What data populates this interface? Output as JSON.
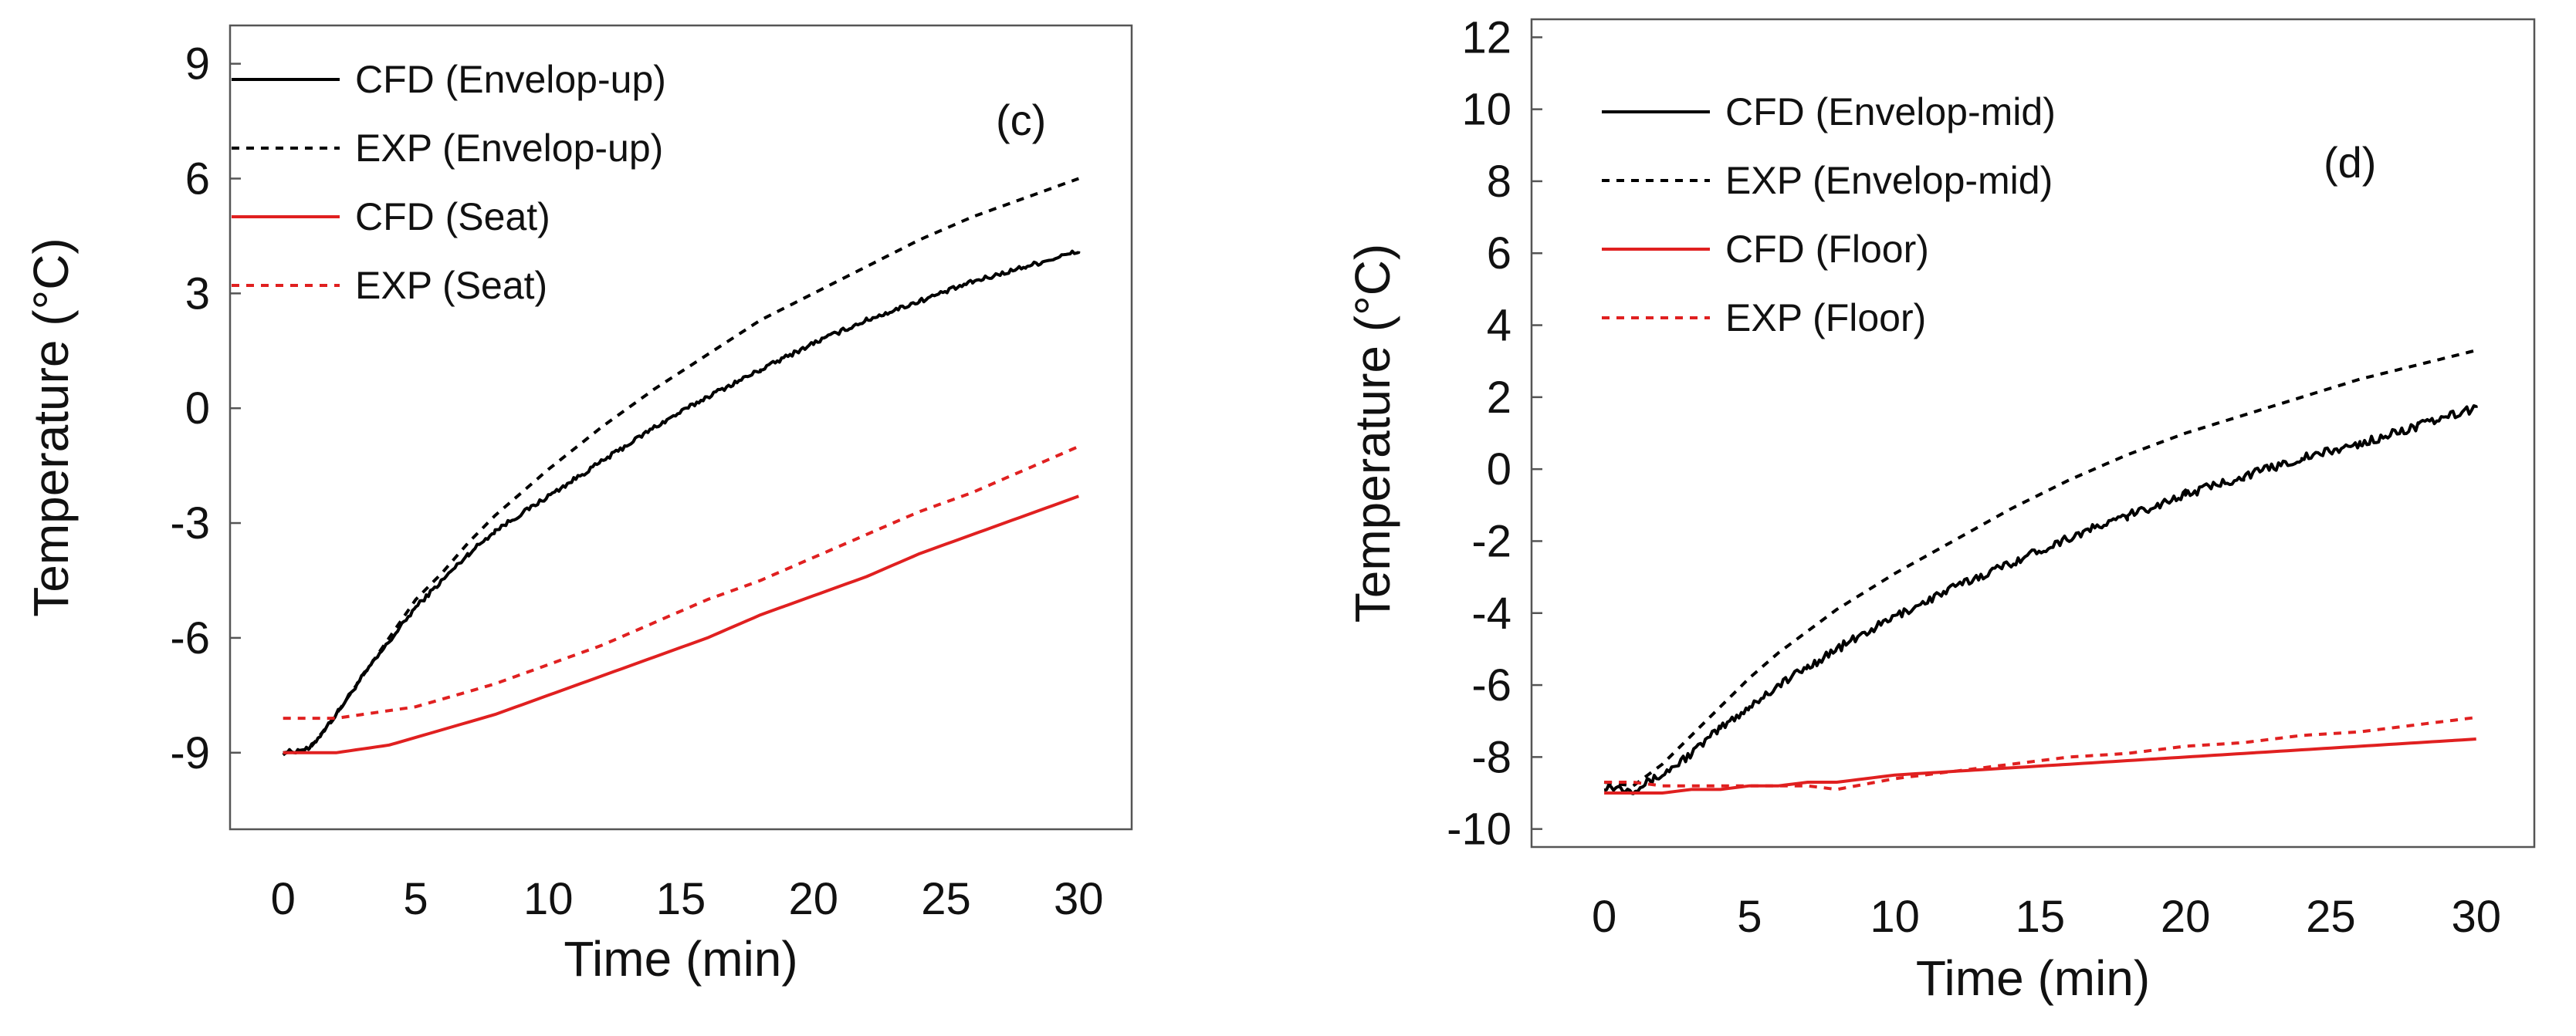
{
  "chart_data": [
    {
      "type": "line",
      "panel_label": "(c)",
      "xlabel": "Time (min)",
      "ylabel": "Temperature (°C)",
      "xlim": [
        -2,
        32
      ],
      "ylim": [
        -11,
        10
      ],
      "xticks": [
        0,
        5,
        10,
        15,
        20,
        25,
        30
      ],
      "yticks": [
        -9,
        -6,
        -3,
        0,
        3,
        6,
        9
      ],
      "xtick_labels": [
        "0",
        "5",
        "10",
        "15",
        "20",
        "25",
        "30"
      ],
      "ytick_labels": [
        "-9",
        "-6",
        "-3",
        "0",
        "3",
        "6",
        "9"
      ],
      "grid": false,
      "legend_position": "top-left",
      "x": [
        0,
        1,
        2,
        3,
        4,
        5,
        6,
        7,
        8,
        10,
        12,
        14,
        16,
        18,
        20,
        22,
        24,
        26,
        28,
        30
      ],
      "series": [
        {
          "name": "CFD (Envelop-up)",
          "color": "#000000",
          "style": "solid",
          "noise": 0.06,
          "values": [
            -9.0,
            -8.9,
            -8.0,
            -7.0,
            -6.1,
            -5.2,
            -4.5,
            -3.8,
            -3.2,
            -2.3,
            -1.4,
            -0.5,
            0.3,
            1.0,
            1.7,
            2.3,
            2.8,
            3.3,
            3.7,
            4.1
          ]
        },
        {
          "name": "EXP (Envelop-up)",
          "color": "#000000",
          "style": "dotted",
          "noise": 0,
          "values": [
            -9.0,
            -8.9,
            -8.0,
            -7.0,
            -6.0,
            -5.0,
            -4.3,
            -3.5,
            -2.8,
            -1.6,
            -0.5,
            0.5,
            1.4,
            2.3,
            3.0,
            3.7,
            4.4,
            5.0,
            5.5,
            6.0
          ]
        },
        {
          "name": "CFD (Seat)",
          "color": "#e02020",
          "style": "solid",
          "noise": 0,
          "values": [
            -9.0,
            -9.0,
            -9.0,
            -8.9,
            -8.8,
            -8.6,
            -8.4,
            -8.2,
            -8.0,
            -7.5,
            -7.0,
            -6.5,
            -6.0,
            -5.4,
            -4.9,
            -4.4,
            -3.8,
            -3.3,
            -2.8,
            -2.3
          ]
        },
        {
          "name": "EXP (Seat)",
          "color": "#e02020",
          "style": "dotted",
          "noise": 0,
          "values": [
            -8.1,
            -8.1,
            -8.1,
            -8.0,
            -7.9,
            -7.8,
            -7.6,
            -7.4,
            -7.2,
            -6.7,
            -6.2,
            -5.6,
            -5.0,
            -4.5,
            -3.9,
            -3.3,
            -2.7,
            -2.2,
            -1.6,
            -1.0
          ]
        }
      ]
    },
    {
      "type": "line",
      "panel_label": "(d)",
      "xlabel": "Time (min)",
      "ylabel": "Temperature (°C)",
      "xlim": [
        -2.5,
        32
      ],
      "ylim": [
        -10.5,
        12.5
      ],
      "xticks": [
        0,
        5,
        10,
        15,
        20,
        25,
        30
      ],
      "yticks": [
        -10,
        -8,
        -6,
        -4,
        -2,
        0,
        2,
        4,
        6,
        8,
        10,
        12
      ],
      "xtick_labels": [
        "0",
        "5",
        "10",
        "15",
        "20",
        "25",
        "30"
      ],
      "ytick_labels": [
        "-10",
        "-8",
        "-6",
        "-4",
        "-2",
        "0",
        "2",
        "4",
        "6",
        "8",
        "10",
        "12"
      ],
      "grid": false,
      "legend_position": "top-left",
      "x": [
        0,
        1,
        2,
        3,
        4,
        5,
        6,
        7,
        8,
        10,
        12,
        14,
        16,
        18,
        20,
        22,
        24,
        26,
        28,
        30
      ],
      "series": [
        {
          "name": "CFD (Envelop-mid)",
          "color": "#000000",
          "style": "solid",
          "noise": 0.12,
          "values": [
            -8.8,
            -8.9,
            -8.5,
            -7.9,
            -7.2,
            -6.6,
            -6.0,
            -5.5,
            -5.0,
            -4.1,
            -3.3,
            -2.6,
            -1.9,
            -1.3,
            -0.7,
            -0.2,
            0.3,
            0.7,
            1.2,
            1.7
          ]
        },
        {
          "name": "EXP (Envelop-mid)",
          "color": "#000000",
          "style": "dotted",
          "noise": 0,
          "values": [
            -8.7,
            -8.8,
            -8.2,
            -7.4,
            -6.6,
            -5.8,
            -5.1,
            -4.5,
            -3.9,
            -2.9,
            -2.0,
            -1.1,
            -0.3,
            0.4,
            1.0,
            1.5,
            2.0,
            2.5,
            2.9,
            3.3
          ]
        },
        {
          "name": "CFD (Floor)",
          "color": "#e02020",
          "style": "solid",
          "noise": 0,
          "values": [
            -9.0,
            -9.0,
            -9.0,
            -8.9,
            -8.9,
            -8.8,
            -8.8,
            -8.7,
            -8.7,
            -8.5,
            -8.4,
            -8.3,
            -8.2,
            -8.1,
            -8.0,
            -7.9,
            -7.8,
            -7.7,
            -7.6,
            -7.5
          ]
        },
        {
          "name": "EXP (Floor)",
          "color": "#e02020",
          "style": "dotted",
          "noise": 0,
          "values": [
            -8.7,
            -8.7,
            -8.8,
            -8.8,
            -8.8,
            -8.8,
            -8.8,
            -8.8,
            -8.9,
            -8.6,
            -8.4,
            -8.2,
            -8.0,
            -7.9,
            -7.7,
            -7.6,
            -7.4,
            -7.3,
            -7.1,
            -6.9
          ]
        }
      ]
    }
  ]
}
